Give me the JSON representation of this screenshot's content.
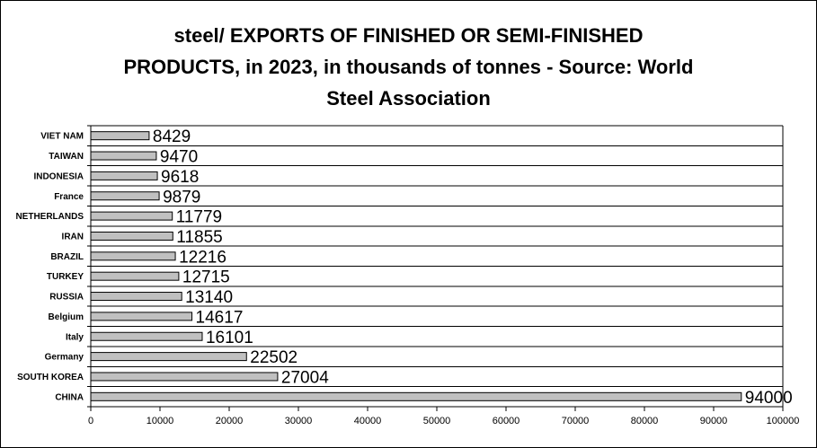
{
  "title_lines": [
    "steel/ EXPORTS OF FINISHED OR SEMI-FINISHED",
    "PRODUCTS, in 2023, in thousands of tonnes - Source: World",
    "Steel Association"
  ],
  "colors": {
    "bar_fill": "#c0c0c0",
    "bar_stroke": "#000000",
    "gridline": "#000000",
    "background": "#ffffff"
  },
  "chart_data": {
    "type": "bar",
    "orientation": "horizontal",
    "title": "steel/ EXPORTS OF FINISHED OR SEMI-FINISHED PRODUCTS, in 2023, in thousands of tonnes - Source: World Steel Association",
    "xlabel": "",
    "ylabel": "",
    "categories": [
      "VIET NAM",
      "TAIWAN",
      "INDONESIA",
      "France",
      "NETHERLANDS",
      "IRAN",
      "BRAZIL",
      "TURKEY",
      "RUSSIA",
      "Belgium",
      "Italy",
      "Germany",
      "SOUTH KOREA",
      "CHINA"
    ],
    "values": [
      8429,
      9470,
      9618,
      9879,
      11779,
      11855,
      12216,
      12715,
      13140,
      14617,
      16101,
      22502,
      27004,
      94000
    ],
    "xlim": [
      0,
      100000
    ],
    "xticks": [
      0,
      10000,
      20000,
      30000,
      40000,
      50000,
      60000,
      70000,
      80000,
      90000,
      100000
    ],
    "grid": "horizontal lines between categories",
    "legend": "none",
    "data_labels": true
  }
}
